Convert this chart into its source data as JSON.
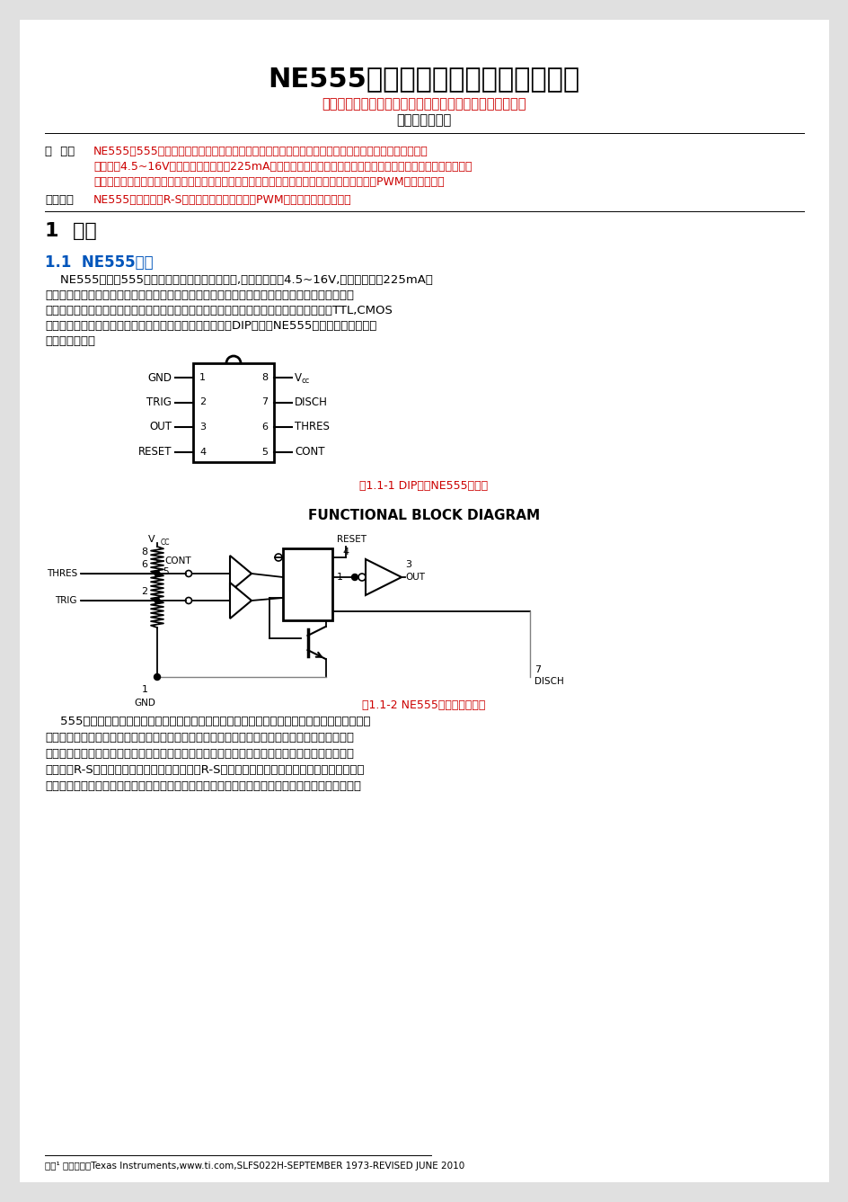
{
  "title": "NE555时基集成电路的创新应用研究",
  "authors": "王若辞，邱宗航，符俊虎，李麒，王艺凯，郑培远，刘世源",
  "affiliation": "（平顶山一中）",
  "abstract_label": "摘  要：",
  "abstract_lines": [
    "NE555是555计时芯片中应用较广的一个型号，具有双稳态、单稳态、无稳态三种电路组织形式，工作电",
    "压范围达4.5~16V，输出电流最大可达225mA，工作频率范围宽，具有较好的兼容性，其双稳态电路可用于电子开",
    "关等，单稳态电路可用于定时器、延时器、分频器等，无稳态电路可用于逆变器、音频振荡器、PWM调压输出等。"
  ],
  "keywords_label": "关键词：",
  "keywords_text": "NE555集成电路；R-S触发器；单稳态定时器；PWM调压输出；多谐振荡器",
  "section1": "1  绪论",
  "section11": "1.1  NE555简介",
  "body1_lines": [
    "    NE555是属于555系列的计时芯片中的一个型号,输入电压范围4.5~16V,输出电流最大225mA，",
    "只需简单的电容器、电阻与其配合，便可构成双稳态、单稳态、无稳态三大类电路，完成特定的振",
    "荡、锁存或延时作用，且定时范围极广，可由数微秒至数小时。它的操作电源范围大，可与TTL,CMOS",
    "等逻辑芯片配合，并且输出电流大，可直接推动多种负载。DIP封装的NE555的芯片引脚图和内部",
    "结构图如下所示"
  ],
  "fig1_caption": "图1.1-1 DIP封装NE555引脚图",
  "fig2_title": "FUNCTIONAL BLOCK DIAGRAM",
  "fig2_caption": "图1.1-2 NE555内部结构示意图",
  "body2_lines": [
    "    555定时器典型应用有单稳态电路、双稳态电路、无稳态电路三种。单稳态电路只有一个稳定状",
    "态，触发翻转一段时间后会回到原来的稳定状态，一般用作定时、分频或固定宽度脉冲整形，分为",
    "人工启动型、脉冲启动型、压控振荡器三种类型。双稳态电路有两个稳定状态，具有记忆和锁存的",
    "功能，有R-S触发器和施密特触发器两种形式，R-S型可用于电子开关等，施密特触发器可用于波",
    "形变换、电压鉴别。无稳态电路主要是多谐振荡器，可分为直接反馈型、间接反馈型和压控振荡型，"
  ],
  "footnote": "注释¹ 图片来源：Texas Instruments,www.ti.com,SLFS022H-SEPTEMBER 1973-REVISED JUNE 2010",
  "red_color": "#cc0000",
  "blue_color": "#0055bb",
  "bg_outer": "#e0e0e0",
  "chip_left_labels": [
    "GND",
    "TRIG",
    "OUT",
    "RESET"
  ],
  "chip_left_nums": [
    "1",
    "2",
    "3",
    "4"
  ],
  "chip_right_labels": [
    "V",
    "DISCH",
    "THRES",
    "CONT"
  ],
  "chip_right_nums": [
    "8",
    "7",
    "6",
    "5"
  ]
}
